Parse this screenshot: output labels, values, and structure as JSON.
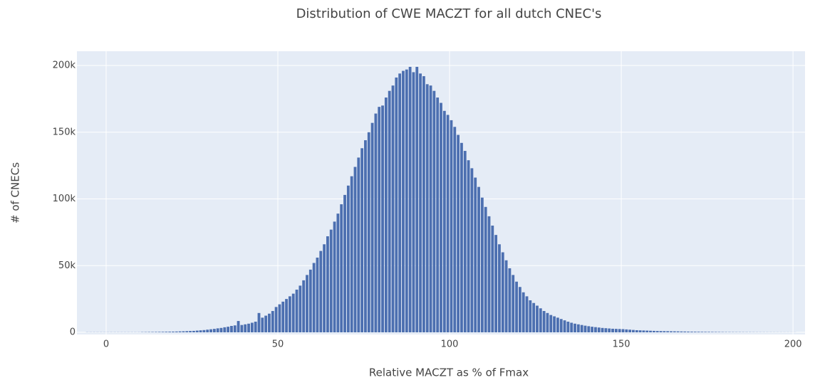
{
  "chart_data": {
    "type": "histogram",
    "title": "Distribution of CWE MACZT for all dutch CNEC's",
    "x_label": "Relative MACZT as % of Fmax",
    "y_label": "# of CNECs",
    "color": "#4c6fb0",
    "grid": true,
    "xlim": [
      -8.5,
      203.5
    ],
    "ylim": [
      -1600,
      210700
    ],
    "xticks": [
      0,
      50,
      100,
      150,
      200
    ],
    "yticks": [
      0,
      {
        "value": 50000,
        "label": "50k"
      },
      {
        "value": 100000,
        "label": "100k"
      },
      {
        "value": 150000,
        "label": "150k"
      },
      {
        "value": 200000,
        "label": "200k"
      }
    ],
    "bins": [
      -6,
      -5,
      -4,
      -3,
      -2,
      -1,
      0,
      1,
      2,
      3,
      4,
      5,
      6,
      7,
      8,
      9,
      10,
      11,
      12,
      13,
      14,
      15,
      16,
      17,
      18,
      19,
      20,
      21,
      22,
      23,
      24,
      25,
      26,
      27,
      28,
      29,
      30,
      31,
      32,
      33,
      34,
      35,
      36,
      37,
      38,
      39,
      40,
      41,
      42,
      43,
      44,
      45,
      46,
      47,
      48,
      49,
      50,
      51,
      52,
      53,
      54,
      55,
      56,
      57,
      58,
      59,
      60,
      61,
      62,
      63,
      64,
      65,
      66,
      67,
      68,
      69,
      70,
      71,
      72,
      73,
      74,
      75,
      76,
      77,
      78,
      79,
      80,
      81,
      82,
      83,
      84,
      85,
      86,
      87,
      88,
      89,
      90,
      91,
      92,
      93,
      94,
      95,
      96,
      97,
      98,
      99,
      100,
      101,
      102,
      103,
      104,
      105,
      106,
      107,
      108,
      109,
      110,
      111,
      112,
      113,
      114,
      115,
      116,
      117,
      118,
      119,
      120,
      121,
      122,
      123,
      124,
      125,
      126,
      127,
      128,
      129,
      130,
      131,
      132,
      133,
      134,
      135,
      136,
      137,
      138,
      139,
      140,
      141,
      142,
      143,
      144,
      145,
      146,
      147,
      148,
      149,
      150,
      151,
      152,
      153,
      154,
      155,
      156,
      157,
      158,
      159,
      160,
      161,
      162,
      163,
      164,
      165,
      166,
      167,
      168,
      169,
      170,
      171,
      172,
      173,
      174,
      175,
      176,
      177,
      178,
      179,
      180,
      181,
      182,
      183,
      184,
      185,
      186,
      187,
      188,
      189,
      190,
      191,
      192,
      193,
      194,
      195,
      196,
      197,
      198,
      199,
      200,
      201
    ],
    "values": [
      100,
      100,
      100,
      100,
      100,
      100,
      100,
      100,
      100,
      100,
      100,
      100,
      100,
      100,
      100,
      100,
      200,
      220,
      250,
      280,
      300,
      350,
      400,
      450,
      500,
      550,
      600,
      700,
      800,
      900,
      1000,
      1100,
      1300,
      1500,
      1700,
      2000,
      2300,
      2600,
      3000,
      3300,
      3800,
      4200,
      4800,
      5200,
      8500,
      5500,
      6000,
      6500,
      7200,
      8000,
      14500,
      11000,
      12500,
      14000,
      16000,
      19000,
      21000,
      23000,
      25000,
      27000,
      29000,
      32000,
      35000,
      39000,
      43000,
      47000,
      52000,
      56000,
      61000,
      66000,
      72000,
      77000,
      83000,
      89000,
      96000,
      103000,
      110000,
      117000,
      124000,
      131000,
      138000,
      144000,
      150000,
      157000,
      164000,
      169000,
      170000,
      176000,
      181000,
      185000,
      191000,
      194000,
      196000,
      197000,
      199000,
      195000,
      199000,
      194000,
      192000,
      186000,
      185000,
      181000,
      176000,
      172000,
      166000,
      163000,
      159000,
      154000,
      148000,
      142000,
      136000,
      129000,
      123000,
      116000,
      109000,
      101000,
      94000,
      87000,
      80000,
      73000,
      66000,
      60000,
      54000,
      48000,
      43000,
      38000,
      34000,
      30000,
      27000,
      24000,
      22000,
      20000,
      18000,
      16000,
      14500,
      13000,
      12000,
      11000,
      10000,
      9000,
      8000,
      7200,
      6500,
      6000,
      5500,
      5000,
      4600,
      4200,
      3900,
      3600,
      3300,
      3100,
      2900,
      2700,
      2600,
      2500,
      2400,
      2200,
      2000,
      1800,
      1600,
      1500,
      1400,
      1300,
      1200,
      1100,
      1000,
      950,
      900,
      850,
      800,
      750,
      700,
      650,
      600,
      550,
      500,
      470,
      440,
      410,
      380,
      350,
      320,
      290,
      260,
      230,
      200,
      190,
      180,
      170,
      160,
      150,
      140,
      130,
      120,
      110,
      100,
      95,
      90,
      85,
      80,
      75,
      70,
      65,
      60,
      55,
      50
    ]
  }
}
